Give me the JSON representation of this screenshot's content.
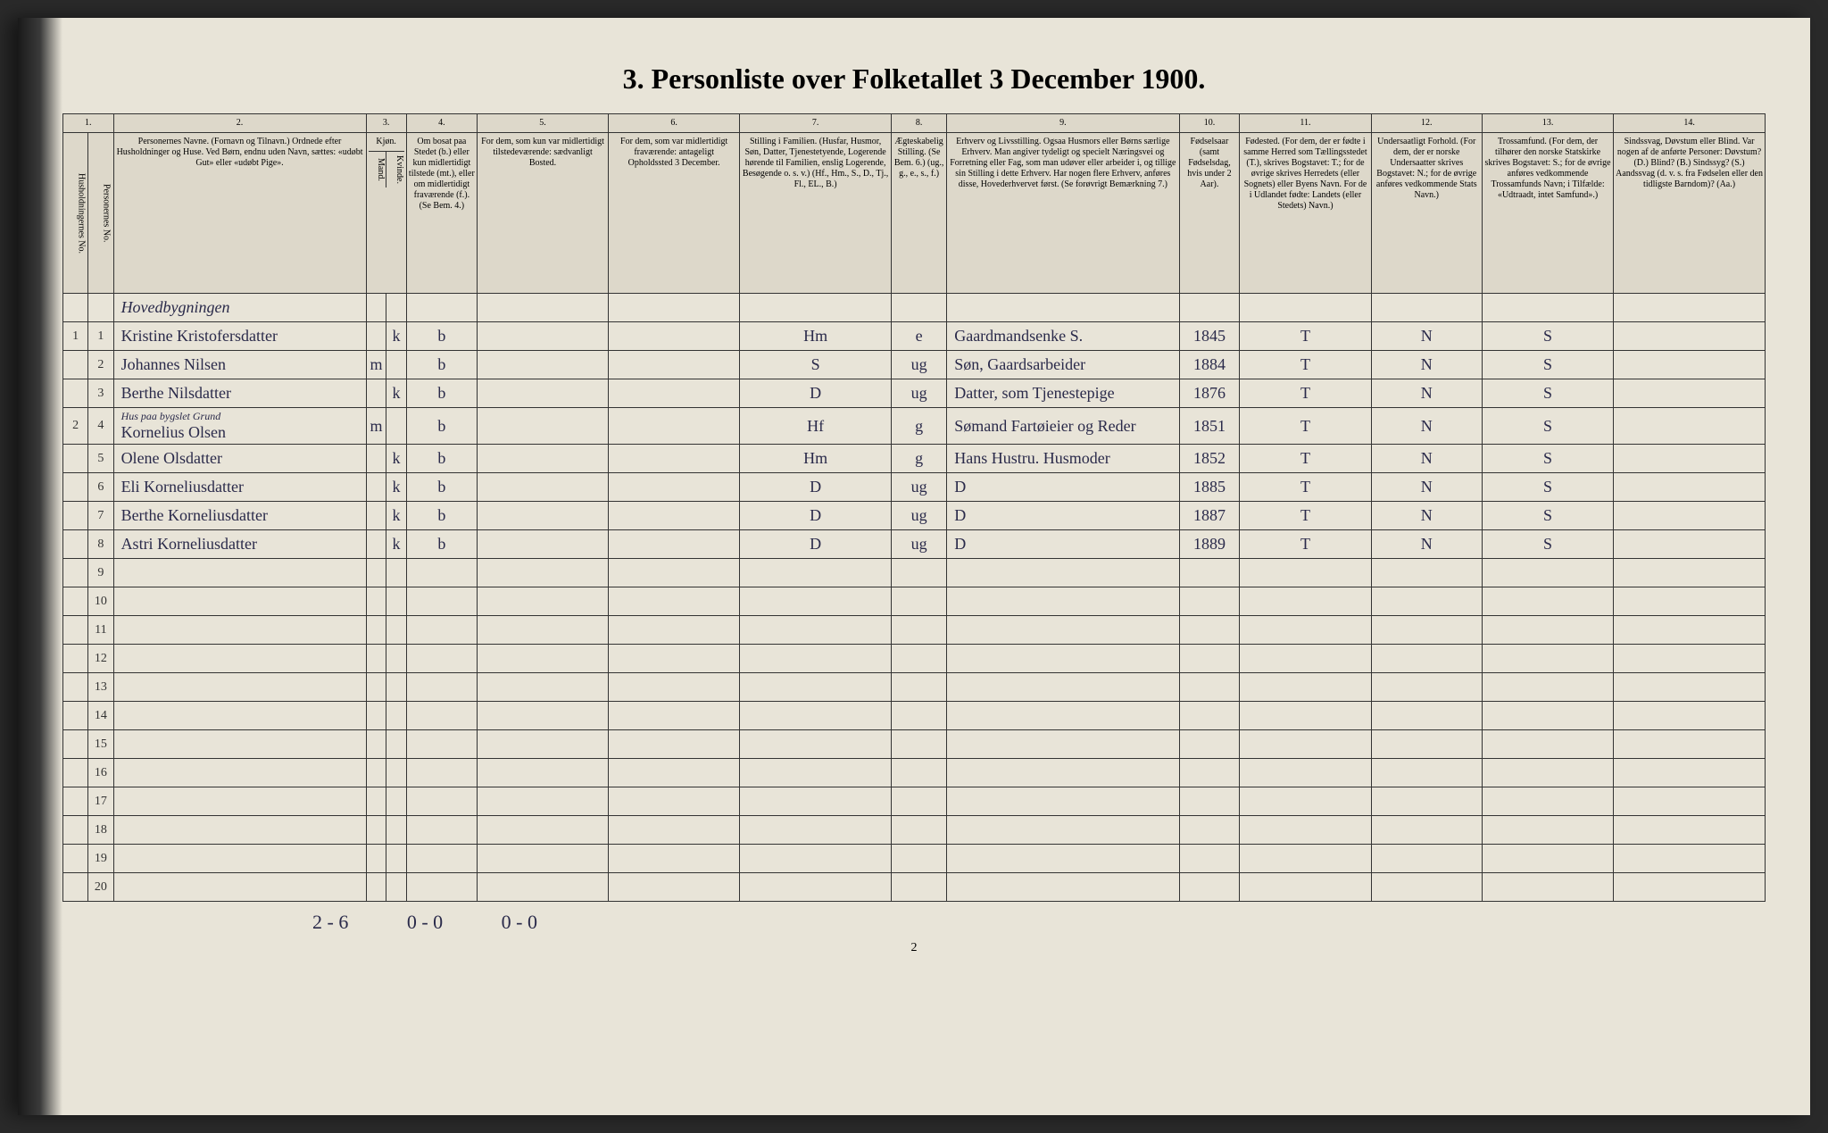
{
  "title": "3. Personliste over Folketallet 3 December 1900.",
  "column_numbers": [
    "1.",
    "2.",
    "3.",
    "4.",
    "5.",
    "6.",
    "7.",
    "8.",
    "9.",
    "10.",
    "11.",
    "12.",
    "13.",
    "14."
  ],
  "headers": {
    "col1a": "Husholdningernes No.",
    "col1b": "Personernes No.",
    "col2": "Personernes Navne. (Fornavn og Tilnavn.) Ordnede efter Husholdninger og Huse. Ved Børn, endnu uden Navn, sættes: «udøbt Gut» eller «udøbt Pige».",
    "col3": "Kjøn.",
    "col3a": "Mand.",
    "col3b": "Kvinde.",
    "col4": "Om bosat paa Stedet (b.) eller kun midlertidigt tilstede (mt.), eller om midlertidigt fraværende (f.). (Se Bem. 4.)",
    "col5": "For dem, som kun var midlertidigt tilstedeværende: sædvanligt Bosted.",
    "col6": "For dem, som var midlertidigt fraværende: antageligt Opholdssted 3 December.",
    "col7": "Stilling i Familien. (Husfar, Husmor, Søn, Datter, Tjenestetyende, Logerende hørende til Familien, enslig Logerende, Besøgende o. s. v.) (Hf., Hm., S., D., Tj., Fl., EL., B.)",
    "col8": "Ægteskabelig Stilling. (Se Bem. 6.) (ug., g., e., s., f.)",
    "col9": "Erhverv og Livsstilling. Ogsaa Husmors eller Børns særlige Erhverv. Man angiver tydeligt og specielt Næringsvei og Forretning eller Fag, som man udøver eller arbeider i, og tillige sin Stilling i dette Erhverv. Har nogen flere Erhverv, anføres disse, Hovederhvervet først. (Se forøvrigt Bemærkning 7.)",
    "col10": "Fødselsaar (samt Fødselsdag, hvis under 2 Aar).",
    "col11": "Fødested. (For dem, der er fødte i samme Herred som Tællingsstedet (T.), skrives Bogstavet: T.; for de øvrige skrives Herredets (eller Sognets) eller Byens Navn. For de i Udlandet fødte: Landets (eller Stedets) Navn.)",
    "col12": "Undersaatligt Forhold. (For dem, der er norske Undersaatter skrives Bogstavet: N.; for de øvrige anføres vedkommende Stats Navn.)",
    "col13": "Trossamfund. (For dem, der tilhører den norske Statskirke skrives Bogstavet: S.; for de øvrige anføres vedkommende Trossamfunds Navn; i Tilfælde: «Udtraadt, intet Samfund».)",
    "col14": "Sindssvag, Døvstum eller Blind. Var nogen af de anførte Personer: Døvstum? (D.) Blind? (B.) Sindssyg? (S.) Aandssvag (d. v. s. fra Fødselen eller den tidligste Barndom)? (Aa.)"
  },
  "building_header": "Hovedbygningen",
  "rows": [
    {
      "hh": "1",
      "pn": "1",
      "name": "Kristine Kristofersdatter",
      "m": "",
      "k": "k",
      "stat": "b",
      "c5": "",
      "c6": "",
      "fam": "Hm",
      "marr": "e",
      "occ": "Gaardmandsenke S.",
      "year": "1845",
      "birth": "T",
      "nat": "N",
      "rel": "S",
      "c14": ""
    },
    {
      "hh": "",
      "pn": "2",
      "name": "Johannes Nilsen",
      "m": "m",
      "k": "",
      "stat": "b",
      "c5": "",
      "c6": "",
      "fam": "S",
      "marr": "ug",
      "occ": "Søn, Gaardsarbeider",
      "year": "1884",
      "birth": "T",
      "nat": "N",
      "rel": "S",
      "c14": ""
    },
    {
      "hh": "",
      "pn": "3",
      "name": "Berthe Nilsdatter",
      "m": "",
      "k": "k",
      "stat": "b",
      "c5": "",
      "c6": "",
      "fam": "D",
      "marr": "ug",
      "occ": "Datter, som Tjenestepige",
      "year": "1876",
      "birth": "T",
      "nat": "N",
      "rel": "S",
      "c14": ""
    },
    {
      "hh": "2",
      "pn": "4",
      "name": "Kornelius Olsen",
      "m": "m",
      "k": "",
      "stat": "b",
      "c5": "",
      "c6": "",
      "fam": "Hf",
      "marr": "g",
      "occ": "Sømand Fartøieier og Reder",
      "year": "1851",
      "birth": "T",
      "nat": "N",
      "rel": "S",
      "c14": ""
    },
    {
      "hh": "",
      "pn": "5",
      "name": "Olene Olsdatter",
      "m": "",
      "k": "k",
      "stat": "b",
      "c5": "",
      "c6": "",
      "fam": "Hm",
      "marr": "g",
      "occ": "Hans Hustru. Husmoder",
      "year": "1852",
      "birth": "T",
      "nat": "N",
      "rel": "S",
      "c14": ""
    },
    {
      "hh": "",
      "pn": "6",
      "name": "Eli Korneliusdatter",
      "m": "",
      "k": "k",
      "stat": "b",
      "c5": "",
      "c6": "",
      "fam": "D",
      "marr": "ug",
      "occ": "D",
      "year": "1885",
      "birth": "T",
      "nat": "N",
      "rel": "S",
      "c14": ""
    },
    {
      "hh": "",
      "pn": "7",
      "name": "Berthe Korneliusdatter",
      "m": "",
      "k": "k",
      "stat": "b",
      "c5": "",
      "c6": "",
      "fam": "D",
      "marr": "ug",
      "occ": "D",
      "year": "1887",
      "birth": "T",
      "nat": "N",
      "rel": "S",
      "c14": ""
    },
    {
      "hh": "",
      "pn": "8",
      "name": "Astri Korneliusdatter",
      "m": "",
      "k": "k",
      "stat": "b",
      "c5": "",
      "c6": "",
      "fam": "D",
      "marr": "ug",
      "occ": "D",
      "year": "1889",
      "birth": "T",
      "nat": "N",
      "rel": "S",
      "c14": ""
    }
  ],
  "subheader_row4": "Hus paa bygslet Grund",
  "empty_rows": [
    "9",
    "10",
    "11",
    "12",
    "13",
    "14",
    "15",
    "16",
    "17",
    "18",
    "19",
    "20"
  ],
  "footer": {
    "a": "2 - 6",
    "b": "0 - 0",
    "c": "0 - 0"
  },
  "page_number": "2",
  "column_widths": {
    "c1a": 25,
    "c1b": 25,
    "c2": 250,
    "c3a": 20,
    "c3b": 20,
    "c4": 70,
    "c5": 130,
    "c6": 130,
    "c7": 150,
    "c8": 55,
    "c9": 230,
    "c10": 60,
    "c11": 130,
    "c12": 110,
    "c13": 130,
    "c14": 150
  },
  "colors": {
    "paper": "#e8e4d8",
    "ink": "#2a2a4a",
    "border": "#333333",
    "header_bg": "#ddd8ca"
  }
}
